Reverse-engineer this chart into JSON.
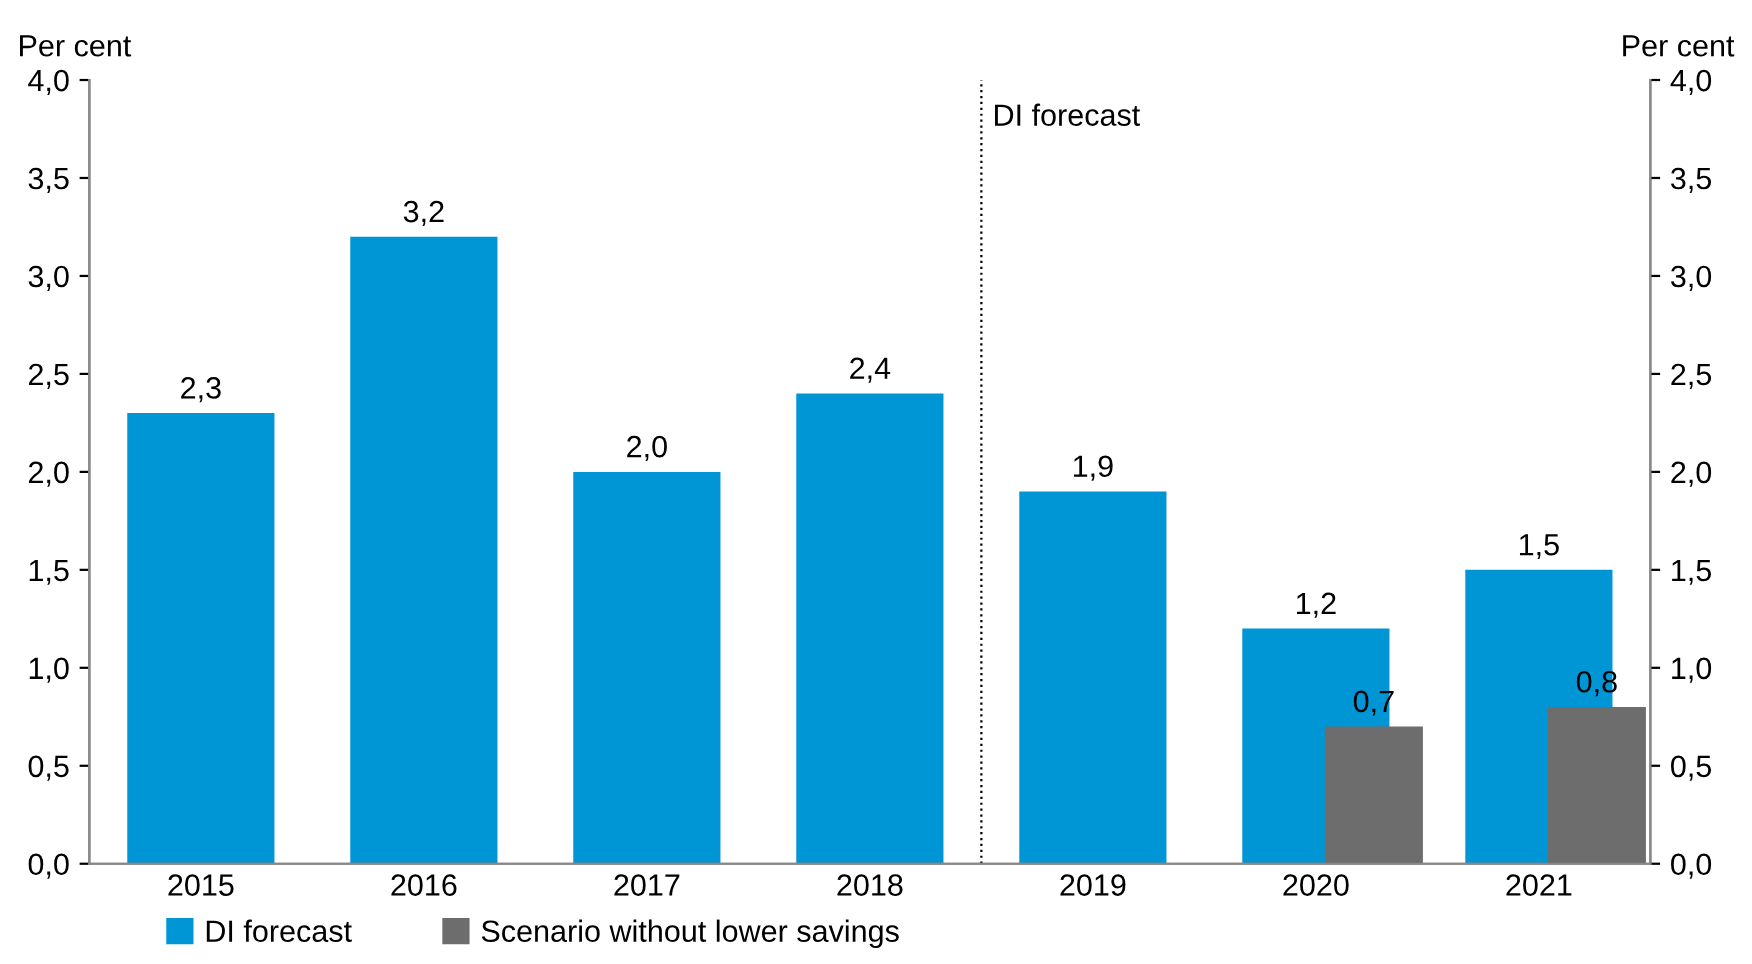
{
  "chart_data": {
    "type": "bar",
    "categories": [
      "2015",
      "2016",
      "2017",
      "2018",
      "2019",
      "2020",
      "2021"
    ],
    "series": [
      {
        "name": "DI forecast",
        "color": "#0096d6",
        "values": [
          2.3,
          3.2,
          2.0,
          2.4,
          1.9,
          1.2,
          1.5
        ],
        "value_labels": [
          "2,3",
          "3,2",
          "2,0",
          "2,4",
          "1,9",
          "1,2",
          "1,5"
        ]
      },
      {
        "name": "Scenario without lower savings",
        "color": "#6d6d6d",
        "values": [
          null,
          null,
          null,
          null,
          null,
          0.7,
          0.8
        ],
        "value_labels": [
          null,
          null,
          null,
          null,
          null,
          "0,7",
          "0,8"
        ]
      }
    ],
    "ylabel": "Per cent",
    "y2label": "Per cent",
    "ylim": [
      0,
      4
    ],
    "y2lim": [
      0,
      4
    ],
    "yticks": [
      {
        "value": 0,
        "label": "0,0"
      },
      {
        "value": 0.5,
        "label": "0,5"
      },
      {
        "value": 1,
        "label": "1,0"
      },
      {
        "value": 1.5,
        "label": "1,5"
      },
      {
        "value": 2,
        "label": "2,0"
      },
      {
        "value": 2.5,
        "label": "2,5"
      },
      {
        "value": 3,
        "label": "3,0"
      },
      {
        "value": 3.5,
        "label": "3,5"
      },
      {
        "value": 4,
        "label": "4,0"
      }
    ],
    "y2ticks": [
      {
        "value": 0,
        "label": "0,0"
      },
      {
        "value": 0.5,
        "label": "0,5"
      },
      {
        "value": 1,
        "label": "1,0"
      },
      {
        "value": 1.5,
        "label": "1,5"
      },
      {
        "value": 2,
        "label": "2,0"
      },
      {
        "value": 2.5,
        "label": "2,5"
      },
      {
        "value": 3,
        "label": "3,0"
      },
      {
        "value": 3.5,
        "label": "3,5"
      },
      {
        "value": 4,
        "label": "4,0"
      }
    ],
    "annotations": [
      "DI forecast"
    ],
    "grid": false,
    "legend": "bottom left"
  }
}
